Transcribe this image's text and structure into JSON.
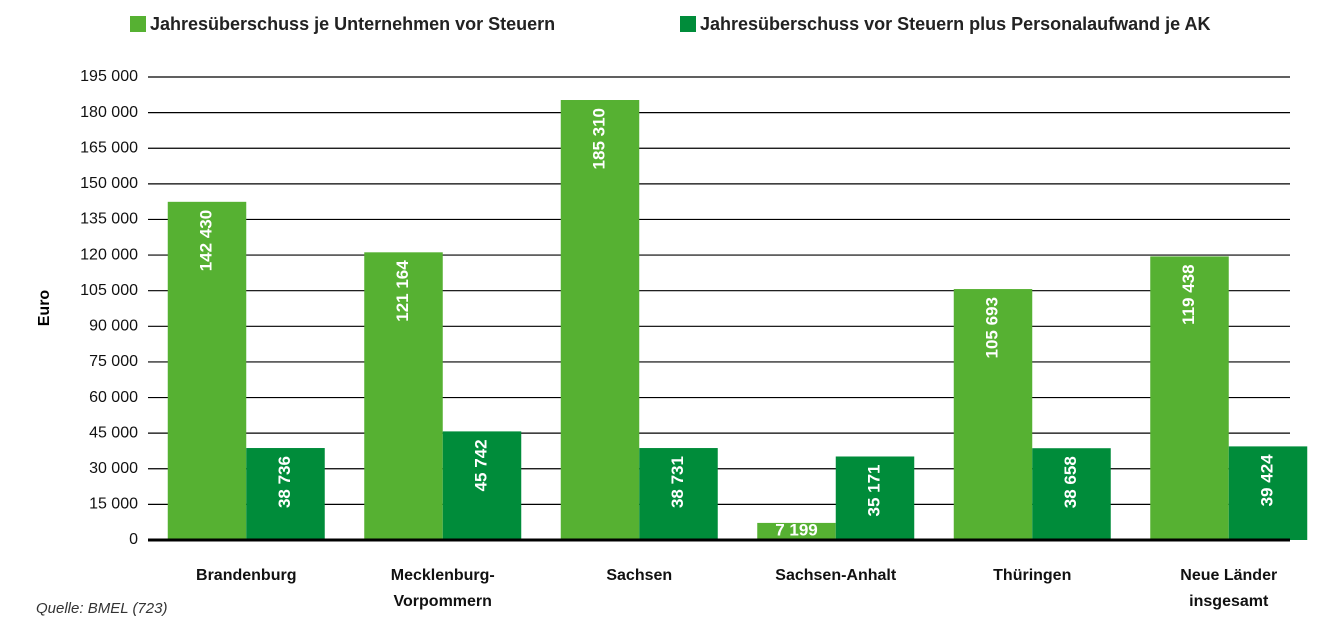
{
  "chart_data": {
    "type": "bar",
    "y_label": "Euro",
    "source": "Quelle: BMEL (723)",
    "categories": [
      "Brandenburg",
      "Mecklenburg-\nVorpommern",
      "Sachsen",
      "Sachsen-Anhalt",
      "Thüringen",
      "Neue Länder\ninsgesamt"
    ],
    "series": [
      {
        "name": "Jahresüberschuss je Unternehmen vor Steuern",
        "color": "#56b132",
        "values": [
          142430,
          121164,
          185310,
          7199,
          105693,
          119438
        ],
        "value_labels": [
          "142 430",
          "121 164",
          "185 310",
          "7 199",
          "105 693",
          "119 438"
        ]
      },
      {
        "name": "Jahresüberschuss vor Steuern plus Personalaufwand je AK",
        "color": "#008c3a",
        "values": [
          38736,
          45742,
          38731,
          35171,
          38658,
          39424
        ],
        "value_labels": [
          "38 736",
          "45 742",
          "38 731",
          "35 171",
          "38 658",
          "39 424"
        ]
      }
    ],
    "ylim": [
      0,
      195000
    ],
    "yticks": [
      0,
      {
        "value": 15000,
        "label": "15 000"
      },
      {
        "value": 30000,
        "label": "30 000"
      },
      {
        "value": 45000,
        "label": "45 000"
      },
      {
        "value": 60000,
        "label": "60 000"
      },
      {
        "value": 75000,
        "label": "75 000"
      },
      {
        "value": 90000,
        "label": "90 000"
      },
      {
        "value": 105000,
        "label": "105 000"
      },
      {
        "value": 120000,
        "label": "120 000"
      },
      {
        "value": 135000,
        "label": "135 000"
      },
      {
        "value": 150000,
        "label": "150 000"
      },
      {
        "value": 165000,
        "label": "165 000"
      },
      {
        "value": 180000,
        "label": "180 000"
      },
      {
        "value": 195000,
        "label": "195 000"
      }
    ],
    "grid": true,
    "legend": "top"
  }
}
